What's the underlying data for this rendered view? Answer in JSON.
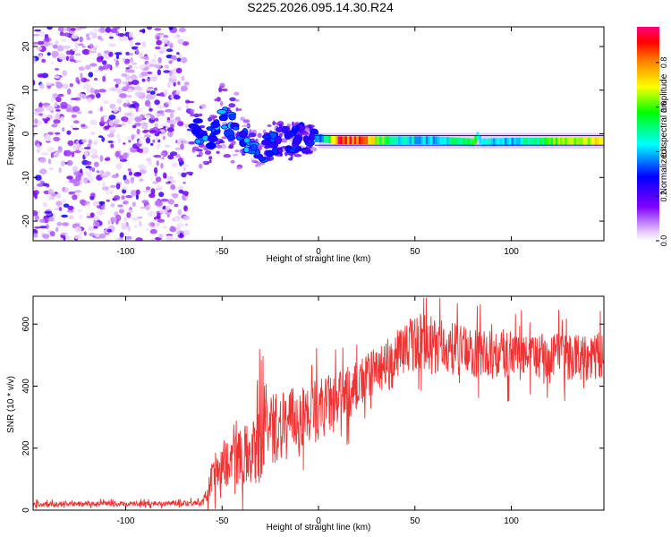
{
  "figure": {
    "title": "S225.2026.095.14.30.R24"
  },
  "colorbar": {
    "label": "Normalized spectral amplitude",
    "ticks": [
      "0.0",
      "0.2",
      "0.4",
      "0.6",
      "0.8"
    ],
    "tick_values": [
      0.0,
      0.2,
      0.4,
      0.6,
      0.8
    ],
    "range": [
      0.0,
      0.96
    ],
    "colormap": [
      "#ffffff",
      "#e6ccff",
      "#8000ff",
      "#0000ff",
      "#00ffff",
      "#00ff00",
      "#ffff00",
      "#ff8000",
      "#ff0000",
      "#ff0080"
    ]
  },
  "chart_data": [
    {
      "type": "heatmap",
      "title": "S225.2026.095.14.30.R24",
      "xlabel": "Height of straight line (km)",
      "ylabel": "Frequency (Hz)",
      "xlim": [
        -148,
        148
      ],
      "ylim": [
        -24.5,
        24.5
      ],
      "xticks": [
        -100,
        -50,
        0,
        50,
        100
      ],
      "yticks": [
        -20,
        -10,
        0,
        10,
        20
      ],
      "xtick_labels": [
        "-100",
        "-50",
        "0",
        "50",
        "100"
      ],
      "ytick_labels": [
        "-20",
        "-10",
        "0",
        "10",
        "20"
      ],
      "description_regions": [
        {
          "x_range": [
            -148,
            -68
          ],
          "freq_range": [
            -24.5,
            24.5
          ],
          "amplitude": "low scattered noise, ~0.05-0.2"
        },
        {
          "x_range": [
            -68,
            -2
          ],
          "freq_range": [
            -9,
            11
          ],
          "amplitude": "clustered blobs, ~0.2-0.5"
        },
        {
          "x_range": [
            0,
            148
          ],
          "freq_center": -1.5,
          "amplitude": "narrow continuous line, ~0.3-0.9"
        }
      ],
      "ridge": {
        "x": [
          -65,
          -60,
          -55,
          -50,
          -45,
          -40,
          -35,
          -30,
          -25,
          -20,
          -15,
          -10,
          -5,
          0,
          10,
          20,
          40,
          60,
          80,
          82,
          84,
          100,
          120,
          140
        ],
        "freq": [
          -1,
          1,
          0,
          3,
          2,
          0,
          -2,
          -4,
          -2,
          -1,
          -2,
          -1,
          -1,
          -1,
          -1.5,
          -1.5,
          -1.5,
          -1.5,
          -2,
          -0.5,
          -2,
          -1.8,
          -1.8,
          -1.8
        ],
        "amplitude": [
          0.3,
          0.4,
          0.35,
          0.5,
          0.4,
          0.35,
          0.4,
          0.35,
          0.35,
          0.3,
          0.3,
          0.3,
          0.3,
          0.35,
          0.9,
          0.85,
          0.45,
          0.4,
          0.6,
          0.5,
          0.45,
          0.4,
          0.6,
          0.7
        ]
      }
    },
    {
      "type": "line",
      "xlabel": "Height of straight line (km)",
      "ylabel": "SNR (10 * v/v)",
      "xlim": [
        -148,
        148
      ],
      "ylim": [
        0,
        690
      ],
      "xticks": [
        -100,
        -50,
        0,
        50,
        100
      ],
      "yticks": [
        0,
        200,
        400,
        600
      ],
      "xtick_labels": [
        "-100",
        "-50",
        "0",
        "50",
        "100"
      ],
      "ytick_labels": [
        "0",
        "200",
        "400",
        "600"
      ],
      "series": [
        {
          "name": "SNR",
          "color": "#ee3333",
          "x": [
            -148,
            -120,
            -100,
            -80,
            -60,
            -57,
            -55,
            -50,
            -45,
            -40,
            -35,
            -30,
            -27,
            -25,
            -20,
            -15,
            -10,
            -5,
            0,
            5,
            10,
            20,
            30,
            40,
            45,
            50,
            55,
            60,
            70,
            80,
            90,
            100,
            110,
            120,
            130,
            140,
            148
          ],
          "values": [
            18,
            20,
            20,
            22,
            25,
            60,
            110,
            150,
            160,
            180,
            190,
            200,
            240,
            260,
            270,
            290,
            300,
            310,
            330,
            340,
            350,
            400,
            450,
            500,
            520,
            540,
            540,
            530,
            520,
            510,
            500,
            500,
            500,
            495,
            495,
            495,
            500
          ],
          "noise": [
            12,
            12,
            12,
            12,
            14,
            60,
            90,
            110,
            120,
            130,
            150,
            200,
            180,
            160,
            160,
            150,
            140,
            150,
            150,
            140,
            130,
            120,
            110,
            110,
            120,
            130,
            130,
            130,
            120,
            120,
            110,
            110,
            100,
            110,
            110,
            110,
            110
          ]
        }
      ]
    }
  ]
}
